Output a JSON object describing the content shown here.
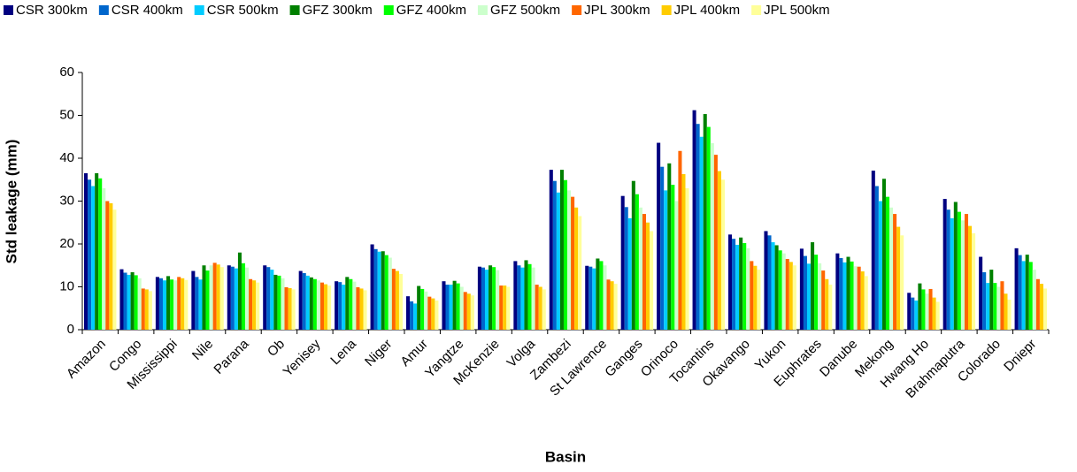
{
  "chart_data": {
    "type": "bar",
    "x_label": "Basin",
    "y_label": "Std leakage (mm)",
    "categories": [
      "Amazon",
      "Congo",
      "Mississippi",
      "Nile",
      "Parana",
      "Ob",
      "Yenisey",
      "Lena",
      "Niger",
      "Amur",
      "Yangtze",
      "McKenzie",
      "Volga",
      "Zambezi",
      "St Lawrence",
      "Ganges",
      "Orinoco",
      "Tocantins",
      "Okavango",
      "Yukon",
      "Euphrates",
      "Danube",
      "Mekong",
      "Hwang Ho",
      "Brahmaputra",
      "Colorado",
      "Dniepr"
    ],
    "series": [
      {
        "name": "CSR 300km",
        "color": "#000080",
        "values": [
          36.5,
          14.1,
          12.3,
          13.7,
          15,
          15,
          13.7,
          11.3,
          19.9,
          7.8,
          11.3,
          14.7,
          16,
          37.3,
          14.9,
          31.2,
          43.6,
          51.2,
          22.2,
          23,
          18.9,
          17.8,
          37.1,
          8.6,
          30.5,
          17,
          19
        ]
      },
      {
        "name": "CSR 400km",
        "color": "#0066cc",
        "values": [
          35,
          13.3,
          12,
          12.3,
          14.7,
          14.6,
          13.2,
          11.1,
          18.8,
          6.6,
          10.5,
          14.5,
          15,
          34.7,
          14.7,
          28.6,
          38,
          48,
          21.2,
          22,
          17.2,
          16.7,
          33.5,
          7.5,
          28,
          13.4,
          17.4
        ]
      },
      {
        "name": "CSR 500km",
        "color": "#00ccff",
        "values": [
          33.5,
          12.8,
          11.5,
          11.7,
          14.3,
          14,
          12.6,
          10.5,
          18.2,
          6.1,
          10.5,
          14,
          14.5,
          32,
          14.3,
          26,
          32.5,
          45,
          19.8,
          20.4,
          15.4,
          15.7,
          30,
          6.8,
          26,
          10.9,
          16
        ]
      },
      {
        "name": "GFZ 300km",
        "color": "#008000",
        "values": [
          36.5,
          13.4,
          12.5,
          15,
          18,
          12.8,
          12.2,
          12.3,
          18.3,
          10.2,
          11.4,
          15,
          16.2,
          37.3,
          16.6,
          34.7,
          38.8,
          50.3,
          21.5,
          19.7,
          20.4,
          17,
          35.2,
          10.8,
          29.8,
          14,
          17.5
        ]
      },
      {
        "name": "GFZ 400km",
        "color": "#00ff00",
        "values": [
          35.3,
          12.7,
          11.7,
          13.8,
          15.5,
          12.6,
          11.8,
          11.8,
          17.4,
          9.5,
          10.8,
          14.6,
          15.3,
          34.9,
          16,
          31.6,
          33.8,
          47.3,
          20.2,
          18.5,
          17.5,
          15.9,
          31,
          9.4,
          27.5,
          10.9,
          15.8
        ]
      },
      {
        "name": "GFZ 500km",
        "color": "#ccffcc",
        "values": [
          33,
          12,
          11.5,
          15,
          14.5,
          12,
          11.5,
          11.2,
          16.8,
          8.9,
          10,
          13.9,
          14.5,
          32.5,
          15,
          28.5,
          30,
          43.5,
          19,
          17.8,
          15.5,
          14.8,
          28.5,
          8.4,
          25.5,
          10,
          14
        ]
      },
      {
        "name": "JPL 300km",
        "color": "#ff6600",
        "values": [
          30,
          9.6,
          12.3,
          15.6,
          11.8,
          9.9,
          11,
          9.9,
          14.2,
          7.7,
          8.8,
          10.3,
          10.5,
          31,
          11.7,
          27,
          41.7,
          40.8,
          16,
          16.5,
          13.8,
          14.7,
          27,
          9.5,
          27,
          11.3,
          11.8
        ]
      },
      {
        "name": "JPL 400km",
        "color": "#ffcc00",
        "values": [
          29.5,
          9.4,
          12,
          15.2,
          11.5,
          9.7,
          10.6,
          9.6,
          13.7,
          7.3,
          8.4,
          10.3,
          10,
          28.5,
          11.3,
          25,
          36.3,
          37,
          14.9,
          15.8,
          11.8,
          13.6,
          24,
          7.5,
          24.2,
          8.4,
          10.7
        ]
      },
      {
        "name": "JPL 500km",
        "color": "#ffff99",
        "values": [
          28,
          9,
          11.6,
          14.6,
          11,
          9.4,
          10.3,
          9.2,
          13,
          6.8,
          8,
          10,
          9.4,
          26.5,
          10.7,
          23,
          33,
          35,
          14,
          15,
          10.5,
          12.5,
          22,
          6.5,
          22.5,
          7,
          9.6
        ]
      }
    ],
    "ylim": [
      0,
      60
    ],
    "yticks": [
      0,
      10,
      20,
      30,
      40,
      50,
      60
    ]
  }
}
